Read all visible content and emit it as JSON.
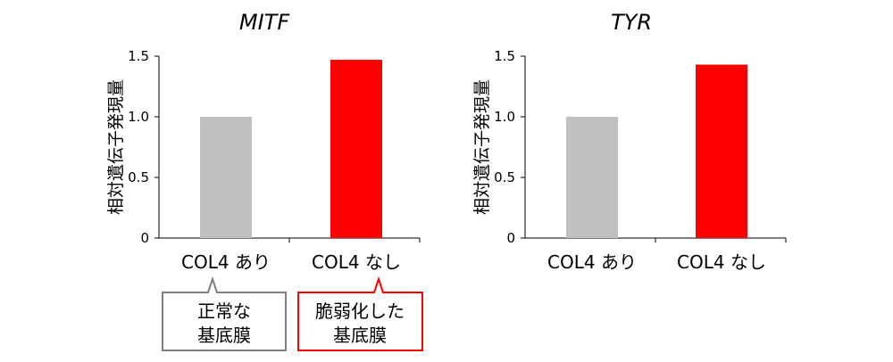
{
  "chart_data": [
    {
      "type": "bar",
      "title": "MITF",
      "ylabel": "相対遺伝子発現量",
      "ylim": [
        0,
        1.5
      ],
      "yticks": [
        "0",
        "0.5",
        "1.0",
        "1.5"
      ],
      "categories": [
        "COL4 あり",
        "COL4 なし"
      ],
      "values": [
        1.0,
        1.47
      ],
      "colors": [
        "#c0c0c0",
        "#ff0000"
      ],
      "annotations": [
        {
          "lines": [
            "正常な",
            "基底膜"
          ],
          "color": "#7f7f7f"
        },
        {
          "lines": [
            "脆弱化した",
            "基底膜"
          ],
          "color": "#ff0000"
        }
      ]
    },
    {
      "type": "bar",
      "title": "TYR",
      "ylabel": "相対遺伝子発現量",
      "ylim": [
        0,
        1.5
      ],
      "yticks": [
        "0",
        "0.5",
        "1.0",
        "1.5"
      ],
      "categories": [
        "COL4 あり",
        "COL4 なし"
      ],
      "values": [
        1.0,
        1.43
      ],
      "colors": [
        "#c0c0c0",
        "#ff0000"
      ]
    }
  ]
}
